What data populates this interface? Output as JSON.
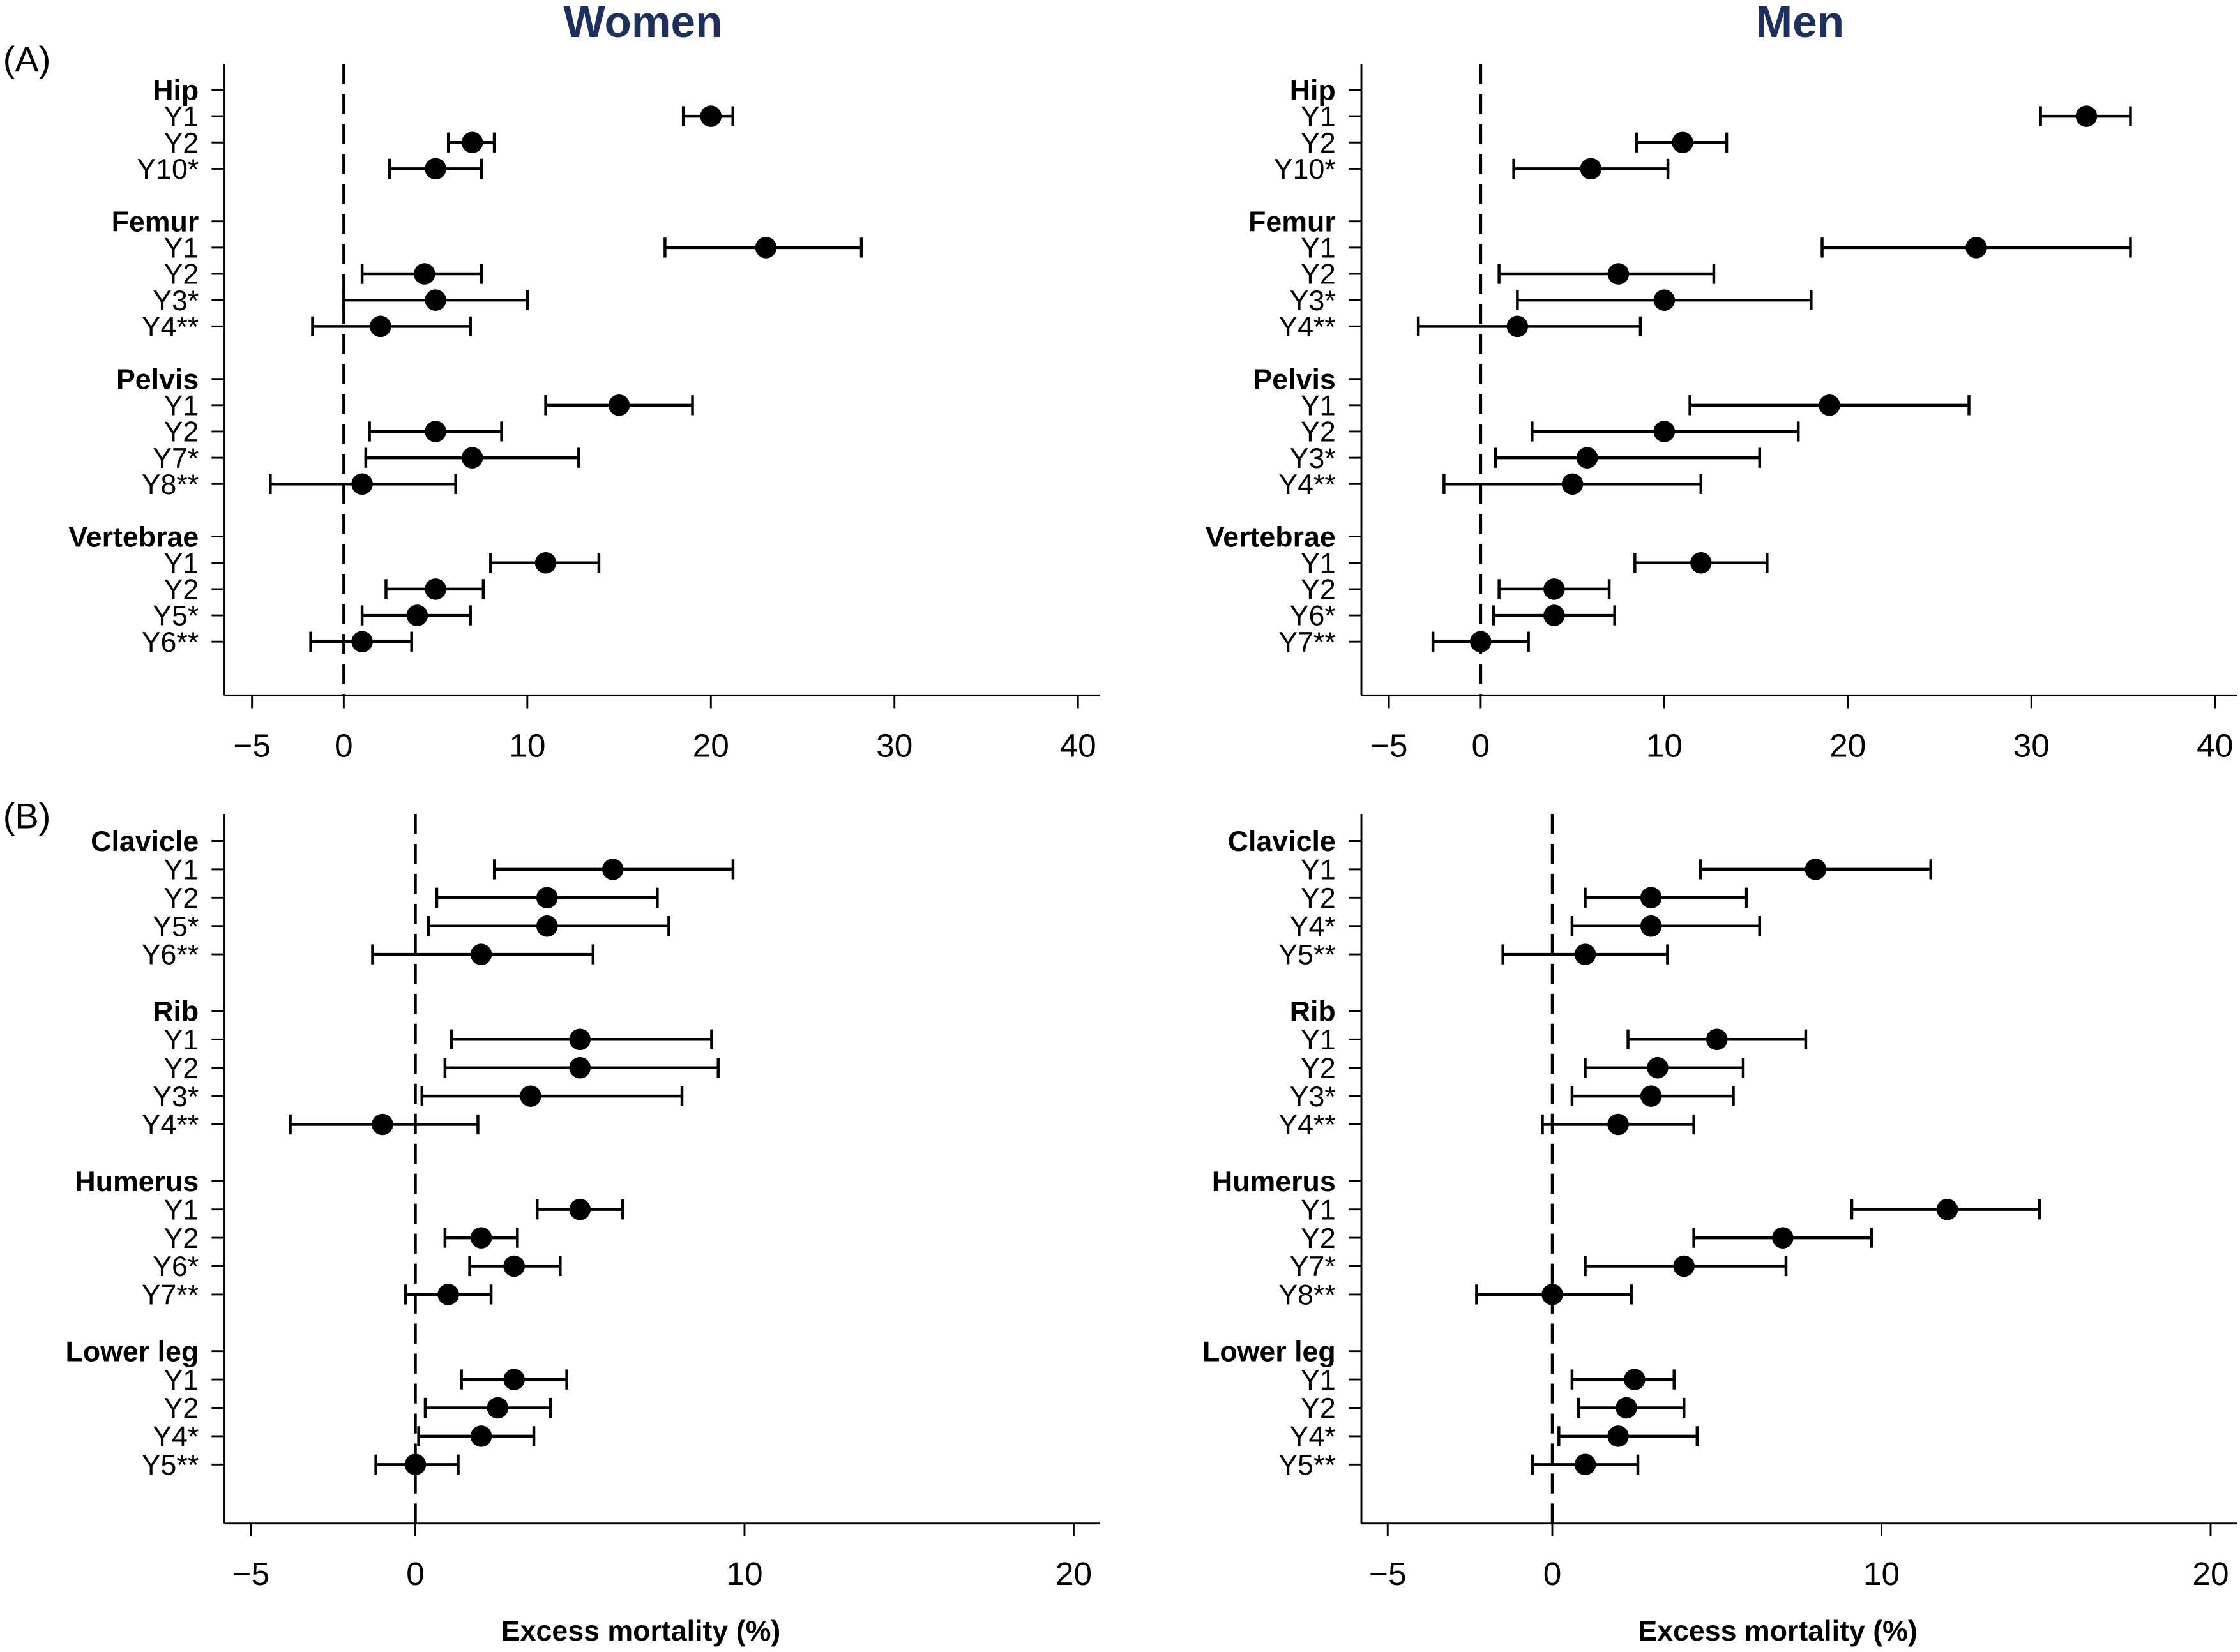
{
  "panel_labels": [
    "(A)",
    "(B)"
  ],
  "column_titles": [
    "Women",
    "Men"
  ],
  "colors": {
    "title": "#1f2f5c",
    "marks": "#000000"
  },
  "chart_data": [
    {
      "type": "scatter",
      "subtype": "forest-plot",
      "panel": "(A)",
      "title": "Women",
      "xlabel": "",
      "xlim": [
        -6.5,
        41.2
      ],
      "xticks": [
        -5,
        0,
        10,
        20,
        30,
        40
      ],
      "reference_line": 0,
      "groups": [
        {
          "name": "Hip",
          "rows": [
            {
              "label": "Y1",
              "est": 20,
              "lo": 18.5,
              "hi": 21.2
            },
            {
              "label": "Y2",
              "est": 7,
              "lo": 5.7,
              "hi": 8.2
            },
            {
              "label": "Y10*",
              "est": 5,
              "lo": 2.5,
              "hi": 7.5
            }
          ]
        },
        {
          "name": "Femur",
          "rows": [
            {
              "label": "Y1",
              "est": 23,
              "lo": 17.5,
              "hi": 28.2
            },
            {
              "label": "Y2",
              "est": 4.4,
              "lo": 1.0,
              "hi": 7.5
            },
            {
              "label": "Y3*",
              "est": 5,
              "lo": 0,
              "hi": 10
            },
            {
              "label": "Y4**",
              "est": 2,
              "lo": -1.7,
              "hi": 6.9
            }
          ]
        },
        {
          "name": "Pelvis",
          "rows": [
            {
              "label": "Y1",
              "est": 15,
              "lo": 11,
              "hi": 19
            },
            {
              "label": "Y2",
              "est": 5,
              "lo": 1.4,
              "hi": 8.6
            },
            {
              "label": "Y7*",
              "est": 7,
              "lo": 1.2,
              "hi": 12.8
            },
            {
              "label": "Y8**",
              "est": 1,
              "lo": -4,
              "hi": 6.1
            }
          ]
        },
        {
          "name": "Vertebrae",
          "rows": [
            {
              "label": "Y1",
              "est": 11,
              "lo": 8,
              "hi": 13.9
            },
            {
              "label": "Y2",
              "est": 5,
              "lo": 2.3,
              "hi": 7.6
            },
            {
              "label": "Y5*",
              "est": 4,
              "lo": 1,
              "hi": 6.9
            },
            {
              "label": "Y6**",
              "est": 1,
              "lo": -1.8,
              "hi": 3.7
            }
          ]
        }
      ]
    },
    {
      "type": "scatter",
      "subtype": "forest-plot",
      "panel": "(A)",
      "title": "Men",
      "xlabel": "",
      "xlim": [
        -6.5,
        41.2
      ],
      "xticks": [
        -5,
        0,
        10,
        20,
        30,
        40
      ],
      "reference_line": 0,
      "groups": [
        {
          "name": "Hip",
          "rows": [
            {
              "label": "Y1",
              "est": 33,
              "lo": 30.5,
              "hi": 35.4
            },
            {
              "label": "Y2",
              "est": 11,
              "lo": 8.5,
              "hi": 13.4
            },
            {
              "label": "Y10*",
              "est": 6,
              "lo": 1.8,
              "hi": 10.2
            }
          ]
        },
        {
          "name": "Femur",
          "rows": [
            {
              "label": "Y1",
              "est": 27,
              "lo": 18.6,
              "hi": 35.4
            },
            {
              "label": "Y2",
              "est": 7.5,
              "lo": 1,
              "hi": 12.7
            },
            {
              "label": "Y3*",
              "est": 10,
              "lo": 2,
              "hi": 18
            },
            {
              "label": "Y4**",
              "est": 2,
              "lo": -3.4,
              "hi": 8.7
            }
          ]
        },
        {
          "name": "Pelvis",
          "rows": [
            {
              "label": "Y1",
              "est": 19,
              "lo": 11.4,
              "hi": 26.6
            },
            {
              "label": "Y2",
              "est": 10,
              "lo": 2.8,
              "hi": 17.3
            },
            {
              "label": "Y3*",
              "est": 5.8,
              "lo": 0.8,
              "hi": 15.2
            },
            {
              "label": "Y4**",
              "est": 5,
              "lo": -2,
              "hi": 12
            }
          ]
        },
        {
          "name": "Vertebrae",
          "rows": [
            {
              "label": "Y1",
              "est": 12,
              "lo": 8.4,
              "hi": 15.6
            },
            {
              "label": "Y2",
              "est": 4,
              "lo": 1,
              "hi": 7
            },
            {
              "label": "Y6*",
              "est": 4,
              "lo": 0.7,
              "hi": 7.3
            },
            {
              "label": "Y7**",
              "est": 0,
              "lo": -2.6,
              "hi": 2.6
            }
          ]
        }
      ]
    },
    {
      "type": "scatter",
      "subtype": "forest-plot",
      "panel": "(B)",
      "title": "Women",
      "xlabel": "Excess mortality (%)",
      "xlim": [
        -5.8,
        20.8
      ],
      "xticks": [
        -5,
        0,
        10,
        20
      ],
      "reference_line": 0,
      "groups": [
        {
          "name": "Clavicle",
          "rows": [
            {
              "label": "Y1",
              "est": 6,
              "lo": 2.4,
              "hi": 9.65
            },
            {
              "label": "Y2",
              "est": 4,
              "lo": 0.65,
              "hi": 7.35
            },
            {
              "label": "Y5*",
              "est": 4,
              "lo": 0.4,
              "hi": 7.7
            },
            {
              "label": "Y6**",
              "est": 2,
              "lo": -1.3,
              "hi": 5.4
            }
          ]
        },
        {
          "name": "Rib",
          "rows": [
            {
              "label": "Y1",
              "est": 5,
              "lo": 1.1,
              "hi": 9
            },
            {
              "label": "Y2",
              "est": 5,
              "lo": 0.9,
              "hi": 9.2
            },
            {
              "label": "Y3*",
              "est": 3.5,
              "lo": 0.2,
              "hi": 8.1
            },
            {
              "label": "Y4**",
              "est": -1,
              "lo": -3.8,
              "hi": 1.9
            }
          ]
        },
        {
          "name": "Humerus",
          "rows": [
            {
              "label": "Y1",
              "est": 5,
              "lo": 3.7,
              "hi": 6.3
            },
            {
              "label": "Y2",
              "est": 2,
              "lo": 0.9,
              "hi": 3.1
            },
            {
              "label": "Y6*",
              "est": 3,
              "lo": 1.65,
              "hi": 4.4
            },
            {
              "label": "Y7**",
              "est": 1,
              "lo": -0.3,
              "hi": 2.3
            }
          ]
        },
        {
          "name": "Lower leg",
          "rows": [
            {
              "label": "Y1",
              "est": 3,
              "lo": 1.4,
              "hi": 4.6
            },
            {
              "label": "Y2",
              "est": 2.5,
              "lo": 0.3,
              "hi": 4.1
            },
            {
              "label": "Y4*",
              "est": 2,
              "lo": 0.1,
              "hi": 3.6
            },
            {
              "label": "Y5**",
              "est": 0,
              "lo": -1.2,
              "hi": 1.3
            }
          ]
        }
      ]
    },
    {
      "type": "scatter",
      "subtype": "forest-plot",
      "panel": "(B)",
      "title": "Men",
      "xlabel": "Excess mortality (%)",
      "xlim": [
        -5.8,
        20.8
      ],
      "xticks": [
        -5,
        0,
        10,
        20
      ],
      "reference_line": 0,
      "groups": [
        {
          "name": "Clavicle",
          "rows": [
            {
              "label": "Y1",
              "est": 8,
              "lo": 4.5,
              "hi": 11.5
            },
            {
              "label": "Y2",
              "est": 3,
              "lo": 1,
              "hi": 5.9
            },
            {
              "label": "Y4*",
              "est": 3,
              "lo": 0.6,
              "hi": 6.3
            },
            {
              "label": "Y5**",
              "est": 1,
              "lo": -1.5,
              "hi": 3.5
            }
          ]
        },
        {
          "name": "Rib",
          "rows": [
            {
              "label": "Y1",
              "est": 5,
              "lo": 2.3,
              "hi": 7.7
            },
            {
              "label": "Y2",
              "est": 3.2,
              "lo": 1,
              "hi": 5.8
            },
            {
              "label": "Y3*",
              "est": 3,
              "lo": 0.6,
              "hi": 5.5
            },
            {
              "label": "Y4**",
              "est": 2,
              "lo": -0.3,
              "hi": 4.3
            }
          ]
        },
        {
          "name": "Humerus",
          "rows": [
            {
              "label": "Y1",
              "est": 12,
              "lo": 9.1,
              "hi": 14.8
            },
            {
              "label": "Y2",
              "est": 7,
              "lo": 4.3,
              "hi": 9.7
            },
            {
              "label": "Y7*",
              "est": 4,
              "lo": 1,
              "hi": 7.1
            },
            {
              "label": "Y8**",
              "est": 0,
              "lo": -2.3,
              "hi": 2.4
            }
          ]
        },
        {
          "name": "Lower leg",
          "rows": [
            {
              "label": "Y1",
              "est": 2.5,
              "lo": 0.6,
              "hi": 3.7
            },
            {
              "label": "Y2",
              "est": 2.25,
              "lo": 0.8,
              "hi": 4
            },
            {
              "label": "Y4*",
              "est": 2,
              "lo": 0.2,
              "hi": 4.4
            },
            {
              "label": "Y5**",
              "est": 1,
              "lo": -0.6,
              "hi": 2.6
            }
          ]
        }
      ]
    }
  ]
}
